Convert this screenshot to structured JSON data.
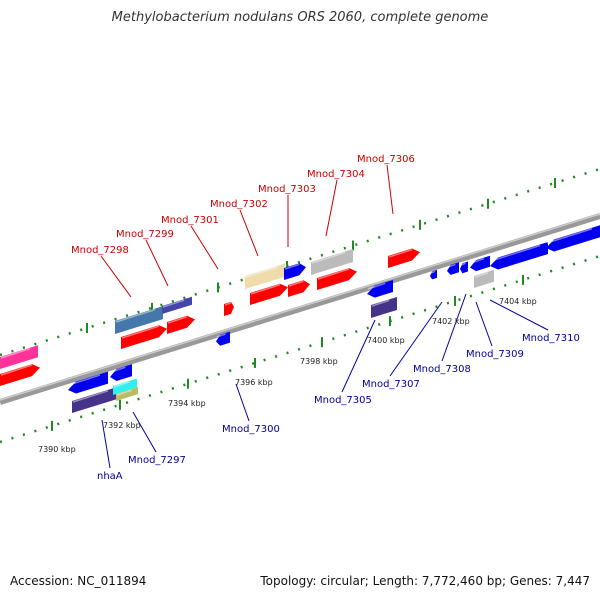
{
  "title": "Methylobacterium nodulans ORS 2060, complete genome",
  "accession": "Accession: NC_011894",
  "summary": "Topology: circular; Length: 7,772,460 bp; Genes: 7,447",
  "colors": {
    "forward_label": "#cc0000",
    "reverse_label": "#000099",
    "forward_gene": "#ff0000",
    "reverse_gene": "#0000ee",
    "backbone": "#888888",
    "tick": "#228822"
  },
  "scale_ticks": [
    "7390 kbp",
    "7392 kbp",
    "7394 kbp",
    "7396 kbp",
    "7398 kbp",
    "7400 kbp",
    "7402 kbp",
    "7404 kbp"
  ],
  "forward_genes": [
    "Mnod_7298",
    "Mnod_7299",
    "Mnod_7301",
    "Mnod_7302",
    "Mnod_7303",
    "Mnod_7304",
    "Mnod_7306"
  ],
  "reverse_genes": [
    "nhaA",
    "Mnod_7297",
    "Mnod_7300",
    "Mnod_7305",
    "Mnod_7307",
    "Mnod_7308",
    "Mnod_7309",
    "Mnod_7310"
  ]
}
